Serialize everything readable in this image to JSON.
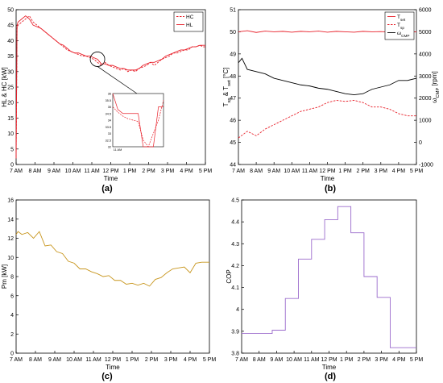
{
  "panels": {
    "a": {
      "caption": "(a)"
    },
    "b": {
      "caption": "(b)"
    },
    "c": {
      "caption": "(c)"
    },
    "d": {
      "caption": "(d)"
    }
  },
  "chart_data": [
    {
      "id": "a",
      "type": "line",
      "xlabel": "Time",
      "ylabel": "HL & HC [kW]",
      "xticks": [
        "7 AM",
        "8 AM",
        "9 AM",
        "10 AM",
        "11 AM",
        "12 PM",
        "1 PM",
        "2 PM",
        "3 PM",
        "4 PM",
        "5 PM"
      ],
      "xlim": [
        7,
        17
      ],
      "ylim": [
        0,
        50
      ],
      "yticks": [
        0,
        5,
        10,
        15,
        20,
        25,
        30,
        35,
        40,
        45,
        50
      ],
      "legend": "top-right",
      "series": [
        {
          "name": "HC",
          "color": "#e8202a",
          "dash": true,
          "x": [
            7,
            7.05,
            7.1,
            7.3,
            7.5,
            7.7,
            7.9,
            8.1,
            8.3,
            8.5,
            8.7,
            8.9,
            9.1,
            9.3,
            9.5,
            9.7,
            9.9,
            10.1,
            10.3,
            10.5,
            10.7,
            10.9,
            11.1,
            11.3,
            11.5,
            11.7,
            11.9,
            12.1,
            12.3,
            12.5,
            12.7,
            12.9,
            13.1,
            13.3,
            13.5,
            13.7,
            13.9,
            14.1,
            14.3,
            14.5,
            14.7,
            14.9,
            15.1,
            15.3,
            15.5,
            15.7,
            15.9,
            16.1,
            16.3,
            16.5,
            16.7,
            16.9,
            17
          ],
          "y": [
            2,
            44,
            45,
            46,
            47,
            48,
            46,
            45,
            44,
            43,
            42,
            41,
            40,
            39,
            38,
            37,
            36.5,
            36,
            35.5,
            35,
            35,
            34.5,
            34,
            33,
            32,
            33,
            32,
            31.5,
            31,
            30.5,
            31,
            30,
            30.5,
            30,
            31,
            31.5,
            32,
            33,
            32,
            33,
            34,
            34.5,
            35,
            36,
            36,
            36.5,
            37,
            37,
            38,
            38,
            38.5,
            38,
            38
          ]
        },
        {
          "name": "HL",
          "color": "#e8202a",
          "dash": false,
          "x": [
            7,
            7.05,
            7.1,
            7.3,
            7.5,
            7.7,
            7.9,
            8.1,
            8.3,
            8.5,
            8.7,
            8.9,
            9.1,
            9.3,
            9.5,
            9.7,
            9.9,
            10.1,
            10.3,
            10.5,
            10.7,
            10.9,
            11.1,
            11.3,
            11.5,
            11.7,
            11.9,
            12.1,
            12.3,
            12.5,
            12.7,
            12.9,
            13.1,
            13.3,
            13.5,
            13.7,
            13.9,
            14.1,
            14.3,
            14.5,
            14.7,
            14.9,
            15.1,
            15.3,
            15.5,
            15.7,
            15.9,
            16.1,
            16.3,
            16.5,
            16.7,
            16.9,
            17
          ],
          "y": [
            2,
            45,
            46,
            47,
            48,
            47,
            45,
            44.5,
            44,
            43,
            42,
            41,
            40,
            39,
            38.5,
            37.5,
            36.5,
            36,
            36,
            35.5,
            35,
            35,
            34.5,
            34,
            32.5,
            32.5,
            32,
            32,
            31.5,
            31,
            31,
            30.5,
            30.5,
            30.5,
            31,
            32,
            32.5,
            33,
            33,
            33.5,
            34,
            35,
            35.5,
            36,
            36.5,
            37,
            37,
            37.5,
            38,
            38,
            38.5,
            38.5,
            38.5
          ]
        }
      ],
      "inset": {
        "xticks": [
          "11 AM"
        ],
        "ylim": [
          32,
          36
        ],
        "yticks": [
          32,
          32.5,
          33,
          33.5,
          34,
          34.5,
          35,
          35.5,
          36
        ],
        "series": [
          {
            "name": "HC",
            "dash": true,
            "x": [
              0,
              0.1,
              0.2,
              0.3,
              0.4,
              0.5,
              0.6,
              0.7,
              0.8,
              0.9,
              1
            ],
            "y": [
              35,
              34.6,
              34.3,
              34.1,
              34,
              33.9,
              32.5,
              32,
              33,
              34,
              35.5
            ]
          },
          {
            "name": "HL",
            "dash": false,
            "x": [
              0,
              0.1,
              0.2,
              0.3,
              0.4,
              0.5,
              0.6,
              0.7,
              0.8,
              0.9,
              1
            ],
            "y": [
              36,
              34.8,
              34.5,
              34.5,
              34.5,
              34.5,
              32,
              32,
              32,
              35,
              35
            ]
          }
        ]
      }
    },
    {
      "id": "b",
      "type": "line",
      "xlabel": "Time",
      "ylabel": "T_sp & T_set [°C]",
      "y2label": "ω_CMP [rpm]",
      "xticks": [
        "7 AM",
        "8 AM",
        "9 AM",
        "10 AM",
        "11 AM",
        "12 PM",
        "1 PM",
        "2 PM",
        "3 PM",
        "4 PM",
        "5 PM"
      ],
      "xlim": [
        7,
        17
      ],
      "ylim": [
        44,
        51
      ],
      "yticks": [
        44,
        45,
        46,
        47,
        48,
        49,
        50,
        51
      ],
      "y2lim": [
        -1000,
        6000
      ],
      "y2ticks": [
        -1000,
        0,
        1000,
        2000,
        3000,
        4000,
        5000,
        6000
      ],
      "legend": "top-right",
      "series": [
        {
          "name": "T_set",
          "axis": "left",
          "color": "#e8202a",
          "dash": false,
          "x": [
            7,
            7.5,
            8,
            8.5,
            9,
            9.5,
            10,
            10.5,
            11,
            11.5,
            12,
            12.5,
            13,
            13.5,
            14,
            14.5,
            15,
            15.5,
            16,
            16.5,
            17
          ],
          "y": [
            50,
            50.05,
            49.97,
            50.03,
            50,
            50.02,
            49.98,
            50.02,
            50,
            50.03,
            49.98,
            50.02,
            50,
            49.98,
            50.02,
            50,
            50.01,
            49.99,
            50.02,
            50,
            50
          ]
        },
        {
          "name": "T_sp",
          "axis": "left",
          "color": "#e8202a",
          "dash": true,
          "x": [
            7,
            7.5,
            8,
            8.5,
            9,
            9.5,
            10,
            10.5,
            11,
            11.5,
            12,
            12.5,
            13,
            13.5,
            14,
            14.5,
            15,
            15.5,
            16,
            16.5,
            17
          ],
          "y": [
            45.2,
            45.5,
            45.3,
            45.6,
            45.8,
            46,
            46.2,
            46.4,
            46.5,
            46.6,
            46.8,
            46.9,
            46.85,
            46.9,
            46.8,
            46.6,
            46.6,
            46.5,
            46.3,
            46.2,
            46.2
          ]
        },
        {
          "name": "ω_CMP",
          "axis": "right",
          "color": "#000000",
          "dash": false,
          "x": [
            7,
            7.2,
            7.5,
            8,
            8.5,
            9,
            9.5,
            10,
            10.5,
            11,
            11.5,
            12,
            12.5,
            13,
            13.5,
            14,
            14.5,
            15,
            15.5,
            16,
            16.5,
            17
          ],
          "y": [
            3600,
            3800,
            3300,
            3200,
            3100,
            2900,
            2800,
            2700,
            2600,
            2550,
            2450,
            2400,
            2300,
            2200,
            2150,
            2200,
            2400,
            2500,
            2600,
            2800,
            2800,
            2900
          ]
        }
      ]
    },
    {
      "id": "c",
      "type": "line",
      "xlabel": "Time",
      "ylabel": "Pm [kW]",
      "xticks": [
        "7 AM",
        "8 AM",
        "9 AM",
        "10 AM",
        "11 AM",
        "12 PM",
        "1 PM",
        "2 PM",
        "3 PM",
        "4 PM",
        "5 PM"
      ],
      "xlim": [
        7,
        17
      ],
      "ylim": [
        0,
        16
      ],
      "yticks": [
        0,
        2,
        4,
        6,
        8,
        10,
        12,
        14,
        16
      ],
      "series": [
        {
          "name": "",
          "color": "#c8961e",
          "dash": false,
          "x": [
            7,
            7.1,
            7.3,
            7.6,
            7.9,
            8.2,
            8.5,
            8.8,
            9.1,
            9.4,
            9.7,
            10,
            10.3,
            10.6,
            10.9,
            11.2,
            11.5,
            11.8,
            12.1,
            12.4,
            12.7,
            13,
            13.3,
            13.6,
            13.9,
            14.2,
            14.5,
            14.8,
            15.1,
            15.4,
            15.7,
            16,
            16.3,
            16.6,
            17
          ],
          "y": [
            12.4,
            12.7,
            12.4,
            12.6,
            12,
            12.7,
            11.2,
            11.3,
            10.6,
            10.4,
            9.6,
            9.4,
            8.8,
            8.8,
            8.5,
            8.3,
            8,
            8.1,
            7.6,
            7.6,
            7.2,
            7.3,
            7.1,
            7.3,
            7,
            7.7,
            7.9,
            8.4,
            8.8,
            8.9,
            9,
            8.4,
            9.4,
            9.5,
            9.5
          ]
        }
      ]
    },
    {
      "id": "d",
      "type": "line",
      "xlabel": "Time",
      "ylabel": "COP",
      "xticks": [
        "7 AM",
        "8 AM",
        "9 AM",
        "10 AM",
        "11 AM",
        "12 PM",
        "1 PM",
        "2 PM",
        "3 PM",
        "4 PM",
        "5 PM"
      ],
      "xlim": [
        7,
        17
      ],
      "ylim": [
        3.8,
        4.5
      ],
      "yticks": [
        3.8,
        3.9,
        4,
        4.1,
        4.2,
        4.3,
        4.4,
        4.5
      ],
      "series": [
        {
          "name": "",
          "color": "#9b6bcc",
          "dash": false,
          "step": true,
          "x": [
            7,
            8,
            8.75,
            9.5,
            10.25,
            11,
            11.75,
            12.5,
            13.25,
            14,
            14.75,
            15.5,
            16.5
          ],
          "y": [
            3.89,
            3.89,
            3.905,
            4.05,
            4.23,
            4.32,
            4.41,
            4.47,
            4.35,
            4.15,
            4.055,
            3.825,
            3.825
          ],
          "xend": 17
        }
      ]
    }
  ]
}
